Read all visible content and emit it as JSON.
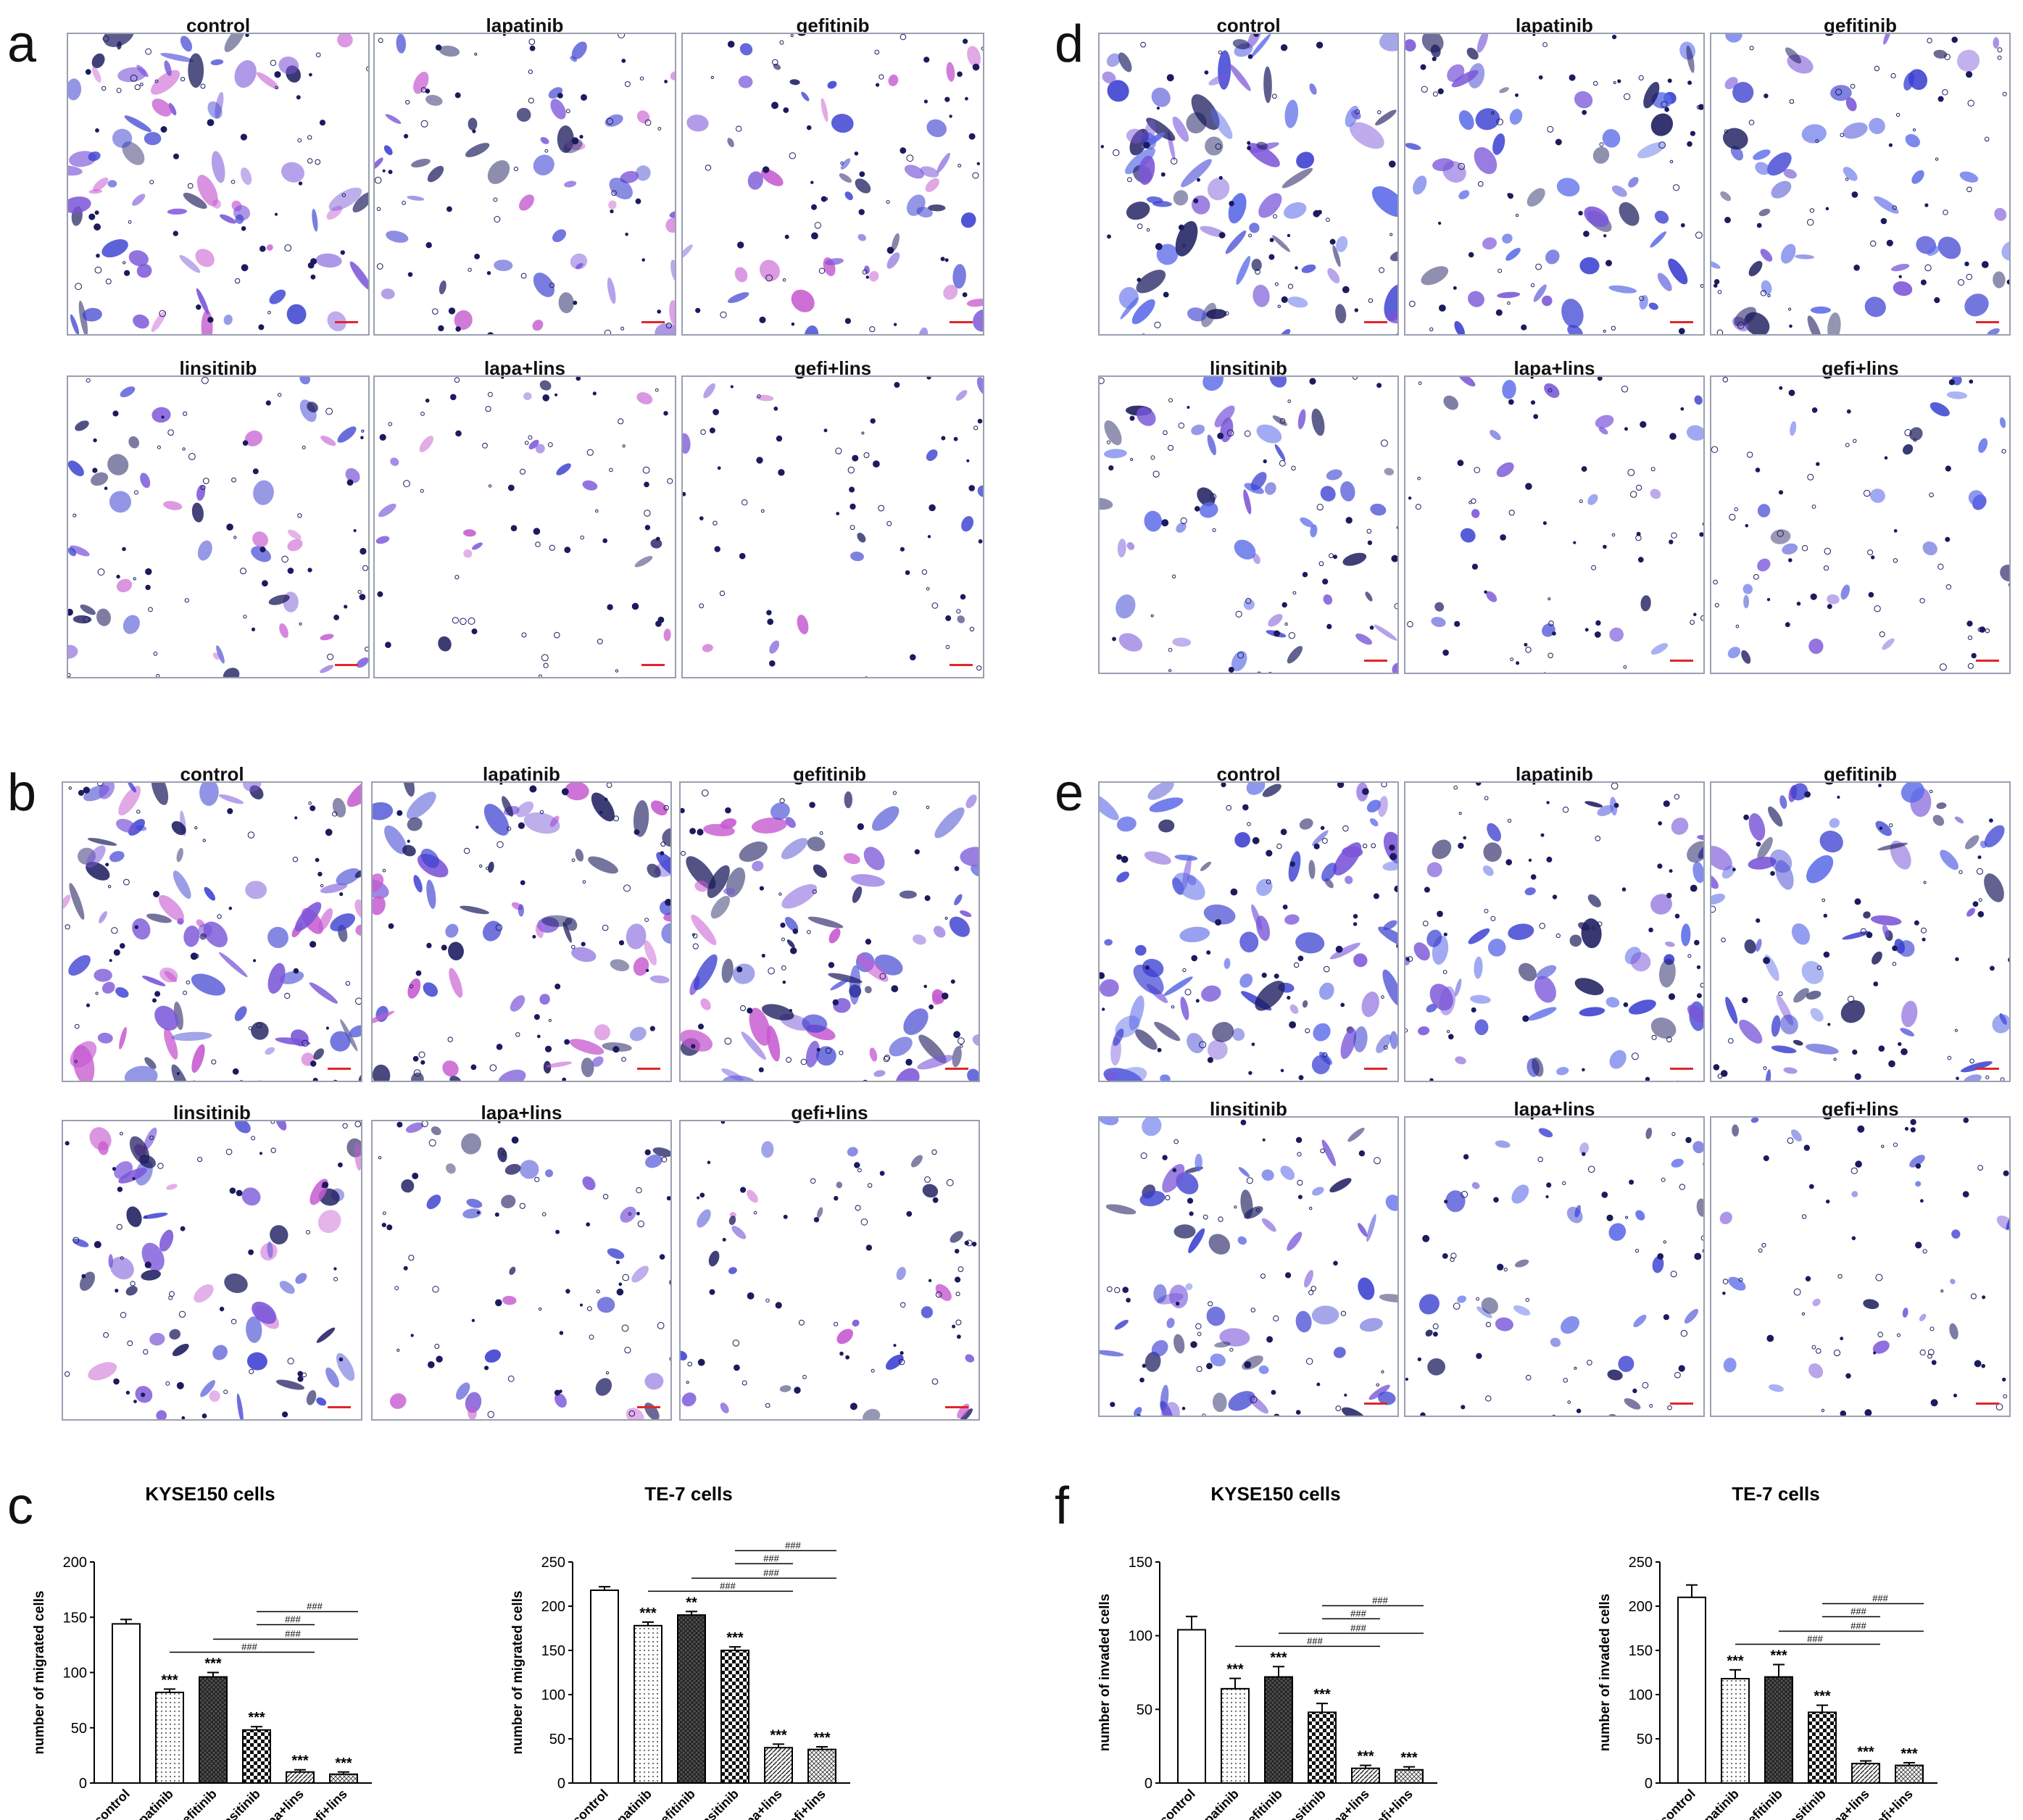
{
  "panels": {
    "a": {
      "letter": "a",
      "labels": [
        "control",
        "lapatinib",
        "gefitinib",
        "linsitinib",
        "lapa+lins",
        "gefi+lins"
      ]
    },
    "b": {
      "letter": "b",
      "labels": [
        "control",
        "lapatinib",
        "gefitinib",
        "linsitinib",
        "lapa+lins",
        "gefi+lins"
      ]
    },
    "d": {
      "letter": "d",
      "labels": [
        "control",
        "lapatinib",
        "gefitinib",
        "linsitinib",
        "lapa+lins",
        "gefi+lins"
      ]
    },
    "e": {
      "letter": "e",
      "labels": [
        "control",
        "lapatinib",
        "gefitinib",
        "linsitinib",
        "lapa+lins",
        "gefi+lins"
      ]
    },
    "c": {
      "letter": "c"
    },
    "f": {
      "letter": "f"
    }
  },
  "colors": {
    "stain_blue": "#3a3fd0",
    "stain_violet": "#7a55d8",
    "stain_pink": "#c65ad0",
    "stain_dark": "#1b1b5e",
    "scale_bar": "#e0262b"
  },
  "chart_data": [
    {
      "type": "bar",
      "panel": "c",
      "title": "KYSE150 cells",
      "ylabel": "number of migrated cells",
      "xlabel": "",
      "categories": [
        "control",
        "lapatinib",
        "gefitinib",
        "linsitinib",
        "lapa+lins",
        "gefi+lins"
      ],
      "values": [
        144,
        82,
        96,
        48,
        10,
        8
      ],
      "errors": [
        4,
        3,
        4,
        3,
        2,
        2
      ],
      "ylim": [
        0,
        200
      ],
      "yticks": [
        0,
        50,
        100,
        150,
        200
      ],
      "stars": [
        "",
        "***",
        "***",
        "***",
        "***",
        "***"
      ],
      "brackets": [
        {
          "from": 1,
          "to": 4,
          "label": "###"
        },
        {
          "from": 2,
          "to": 5,
          "label": "###"
        },
        {
          "from": 3,
          "to": 4,
          "label": "###"
        },
        {
          "from": 3,
          "to": 5,
          "label": "###"
        }
      ]
    },
    {
      "type": "bar",
      "panel": "c",
      "title": "TE-7 cells",
      "ylabel": "number of migrated cells",
      "xlabel": "",
      "categories": [
        "control",
        "lapatinib",
        "gefitinib",
        "linsitinib",
        "lapa+lins",
        "gefi+lins"
      ],
      "values": [
        218,
        178,
        190,
        150,
        40,
        38
      ],
      "errors": [
        4,
        4,
        4,
        4,
        4,
        3
      ],
      "ylim": [
        0,
        250
      ],
      "yticks": [
        0,
        50,
        100,
        150,
        200,
        250
      ],
      "stars": [
        "",
        "***",
        "**",
        "***",
        "***",
        "***"
      ],
      "brackets": [
        {
          "from": 1,
          "to": 4,
          "label": "###"
        },
        {
          "from": 2,
          "to": 5,
          "label": "###"
        },
        {
          "from": 3,
          "to": 4,
          "label": "###"
        },
        {
          "from": 3,
          "to": 5,
          "label": "###"
        }
      ]
    },
    {
      "type": "bar",
      "panel": "f",
      "title": "KYSE150 cells",
      "ylabel": "number of invaded cells",
      "xlabel": "",
      "categories": [
        "control",
        "lapatinib",
        "gefitinib",
        "linsitinib",
        "lapa+lins",
        "gefi+lins"
      ],
      "values": [
        104,
        64,
        72,
        48,
        10,
        9
      ],
      "errors": [
        9,
        7,
        7,
        6,
        2,
        2
      ],
      "ylim": [
        0,
        150
      ],
      "yticks": [
        0,
        50,
        100,
        150
      ],
      "stars": [
        "",
        "***",
        "***",
        "***",
        "***",
        "***"
      ],
      "brackets": [
        {
          "from": 1,
          "to": 4,
          "label": "###"
        },
        {
          "from": 2,
          "to": 5,
          "label": "###"
        },
        {
          "from": 3,
          "to": 4,
          "label": "###"
        },
        {
          "from": 3,
          "to": 5,
          "label": "###"
        }
      ]
    },
    {
      "type": "bar",
      "panel": "f",
      "title": "TE-7 cells",
      "ylabel": "number of invaded cells",
      "xlabel": "",
      "categories": [
        "control",
        "lapatinib",
        "gefitinib",
        "linsitinib",
        "lapa+lins",
        "gefi+lins"
      ],
      "values": [
        210,
        118,
        120,
        80,
        22,
        20
      ],
      "errors": [
        14,
        10,
        14,
        8,
        3,
        3
      ],
      "ylim": [
        0,
        250
      ],
      "yticks": [
        0,
        50,
        100,
        150,
        200,
        250
      ],
      "stars": [
        "",
        "***",
        "***",
        "***",
        "***",
        "***"
      ],
      "brackets": [
        {
          "from": 1,
          "to": 4,
          "label": "###"
        },
        {
          "from": 2,
          "to": 5,
          "label": "###"
        },
        {
          "from": 3,
          "to": 4,
          "label": "###"
        },
        {
          "from": 3,
          "to": 5,
          "label": "###"
        }
      ]
    }
  ]
}
